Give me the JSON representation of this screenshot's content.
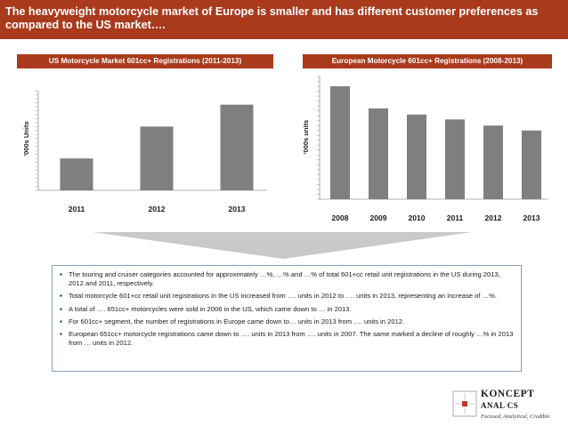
{
  "header": {
    "title": "The heavyweight motorcycle market of Europe is smaller and has different customer preferences as compared to the US market…."
  },
  "colors": {
    "accent": "#a93a1c",
    "bar": "#7f7f7f",
    "funnel": "#c9c9c9",
    "box_border": "#8a9ec0"
  },
  "chart_data": [
    {
      "type": "bar",
      "title": "US Motorcycle Market 601cc+ Registrations (2011-2013)",
      "categories": [
        "2011",
        "2012",
        "2013"
      ],
      "values": [
        32,
        64,
        86
      ],
      "xlabel": "",
      "ylabel": "'000s Units",
      "ylim": [
        0,
        100
      ],
      "grid": false,
      "legend": "none"
    },
    {
      "type": "bar",
      "title": "European Motorcycle 601cc+ Registrations (2008-2013)",
      "categories": [
        "2008",
        "2009",
        "2010",
        "2011",
        "2012",
        "2013"
      ],
      "values": [
        92,
        74,
        69,
        65,
        60,
        56
      ],
      "xlabel": "",
      "ylabel": "'000s units",
      "ylim": [
        0,
        100
      ],
      "grid": false,
      "legend": "none"
    }
  ],
  "bullets": [
    "The touring and cruiser categories accounted for approximately …%, …% and …% of total 601+cc retail unit registrations in the US during 2013, 2012 and 2011, respectively.",
    "Total motorcycle 601+cc retail unit registrations in the US increased from …. units in 2012 to …. units in 2013, representing an increase of …%.",
    "A total of …. 651cc+ motorcycles were sold in 2006 in the US, which came down to …  in 2013.",
    "For 601cc+ segment, the number of registrations in Europe came down to…  units in 2013 from …. units in 2012.",
    "European 651cc+ motorcycle registrations came down to …. units in 2013 from …. units in 2007. The same marked a decline of roughly …% in 2013 from … units in 2012."
  ],
  "logo": {
    "line1": "KONCEPT",
    "line2": "ANAL    CS",
    "tagline": "Focused, Analytical, Credible"
  }
}
